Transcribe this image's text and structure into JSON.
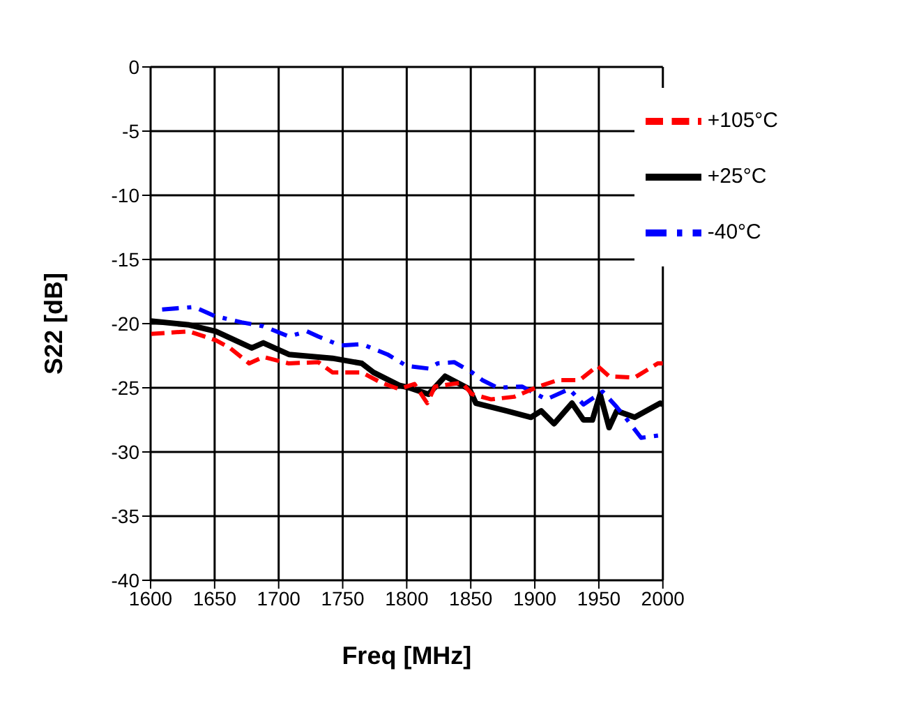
{
  "chart_data": {
    "type": "line",
    "xlabel": "Freq [MHz]",
    "ylabel": "S22 [dB]",
    "xlim": [
      1600,
      2000
    ],
    "ylim": [
      -40,
      0
    ],
    "xticks": [
      1600,
      1650,
      1700,
      1750,
      1800,
      1850,
      1900,
      1950,
      2000
    ],
    "yticks": [
      -40,
      -35,
      -30,
      -25,
      -20,
      -15,
      -10,
      -5,
      0
    ],
    "grid": true,
    "legend": "top right",
    "marker": "none",
    "series": [
      {
        "name": "+25°C",
        "color": "#000000",
        "line_style": "solid",
        "x": [
          1600,
          1630,
          1651,
          1679,
          1688,
          1708,
          1742,
          1765,
          1774,
          1794,
          1802,
          1817,
          1830,
          1849,
          1854,
          1878,
          1897,
          1905,
          1915,
          1929,
          1938,
          1945,
          1951,
          1958,
          1964,
          1978,
          1998,
          2000
        ],
        "values": [
          -19.8,
          -20.1,
          -20.6,
          -21.9,
          -21.5,
          -22.4,
          -22.7,
          -23.1,
          -23.8,
          -24.8,
          -25.0,
          -25.5,
          -24.1,
          -25.1,
          -26.2,
          -26.8,
          -27.3,
          -26.8,
          -27.8,
          -26.2,
          -27.5,
          -27.5,
          -25.5,
          -28.1,
          -26.8,
          -27.3,
          -26.2,
          -26.3
        ]
      },
      {
        "name": "-40°C",
        "color": "#0000ff",
        "line_style": "dashdot",
        "x": [
          1609,
          1634,
          1650,
          1671,
          1688,
          1708,
          1722,
          1731,
          1748,
          1765,
          1785,
          1800,
          1817,
          1824,
          1837,
          1851,
          1859,
          1871,
          1890,
          1909,
          1927,
          1938,
          1953,
          1964,
          1973,
          1983,
          1998,
          2000
        ],
        "values": [
          -18.9,
          -18.7,
          -19.4,
          -19.9,
          -20.2,
          -21.0,
          -20.6,
          -21.0,
          -21.7,
          -21.6,
          -22.4,
          -23.3,
          -23.5,
          -23.1,
          -23.0,
          -23.8,
          -24.4,
          -25.0,
          -24.9,
          -25.9,
          -25.1,
          -26.3,
          -25.3,
          -26.5,
          -27.6,
          -28.9,
          -28.7,
          -28.9
        ]
      },
      {
        "name": "+105°C",
        "color": "#ff0000",
        "line_style": "dashed",
        "x": [
          1600,
          1630,
          1651,
          1662,
          1677,
          1688,
          1708,
          1731,
          1742,
          1765,
          1780,
          1794,
          1806,
          1816,
          1822,
          1843,
          1851,
          1866,
          1884,
          1903,
          1918,
          1935,
          1949,
          1958,
          1978,
          1996,
          2000
        ],
        "values": [
          -20.8,
          -20.6,
          -21.3,
          -21.9,
          -23.1,
          -22.6,
          -23.1,
          -23.0,
          -23.8,
          -23.8,
          -24.6,
          -25.1,
          -24.7,
          -26.2,
          -24.9,
          -24.6,
          -25.5,
          -25.9,
          -25.7,
          -24.9,
          -24.4,
          -24.4,
          -23.3,
          -24.1,
          -24.2,
          -23.1,
          -23.1
        ]
      }
    ]
  }
}
